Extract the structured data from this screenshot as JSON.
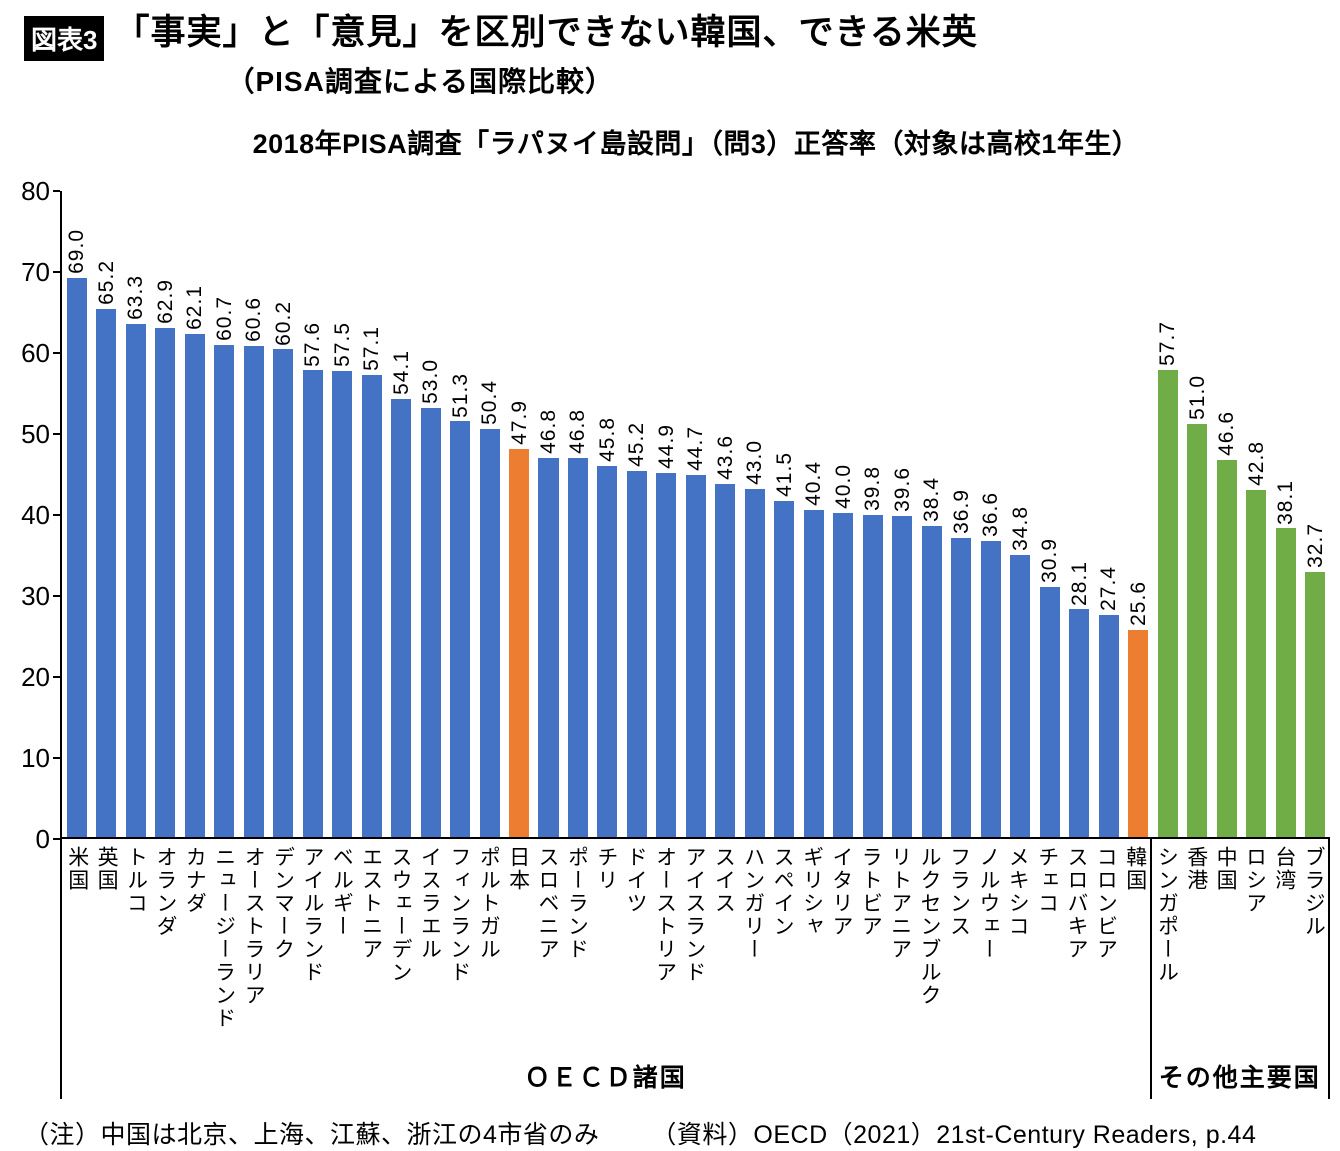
{
  "header": {
    "badge": "図表3",
    "title": "「事実」と「意見」を区別できない韓国、できる米英",
    "subtitle": "（PISA調査による国際比較）"
  },
  "chart_data": {
    "type": "bar",
    "title": "2018年PISA調査「ラパヌイ島設問」（問3）正答率（対象は高校1年生）",
    "xlabel": "",
    "ylabel": "",
    "ylim": [
      0,
      80
    ],
    "yticks": [
      0,
      10,
      20,
      30,
      40,
      50,
      60,
      70,
      80
    ],
    "grid": false,
    "legend": "none",
    "colors": {
      "oecd": "#4472C4",
      "highlight": "#ED7D31",
      "other": "#70AD47"
    },
    "groups": [
      {
        "label": "ＯＥＣＤ諸国",
        "color_key": "oecd",
        "bars": [
          {
            "name": "米国",
            "value": 69.0,
            "label": "69.0"
          },
          {
            "name": "英国",
            "value": 65.2,
            "label": "65.2"
          },
          {
            "name": "トルコ",
            "value": 63.3,
            "label": "63.3"
          },
          {
            "name": "オランダ",
            "value": 62.9,
            "label": "62.9"
          },
          {
            "name": "カナダ",
            "value": 62.1,
            "label": "62.1"
          },
          {
            "name": "ニュージーランド",
            "value": 60.7,
            "label": "60.7"
          },
          {
            "name": "オーストラリア",
            "value": 60.6,
            "label": "60.6"
          },
          {
            "name": "デンマーク",
            "value": 60.2,
            "label": "60.2"
          },
          {
            "name": "アイルランド",
            "value": 57.6,
            "label": "57.6"
          },
          {
            "name": "ベルギー",
            "value": 57.5,
            "label": "57.5"
          },
          {
            "name": "エストニア",
            "value": 57.1,
            "label": "57.1"
          },
          {
            "name": "スウェーデン",
            "value": 54.1,
            "label": "54.1"
          },
          {
            "name": "イスラエル",
            "value": 53.0,
            "label": "53.0"
          },
          {
            "name": "フィンランド",
            "value": 51.3,
            "label": "51.3"
          },
          {
            "name": "ポルトガル",
            "value": 50.4,
            "label": "50.4"
          },
          {
            "name": "日本",
            "value": 47.9,
            "label": "47.9",
            "color_key": "highlight"
          },
          {
            "name": "スロベニア",
            "value": 46.8,
            "label": "46.8"
          },
          {
            "name": "ポーランド",
            "value": 46.8,
            "label": "46.8"
          },
          {
            "name": "チリ",
            "value": 45.8,
            "label": "45.8"
          },
          {
            "name": "ドイツ",
            "value": 45.2,
            "label": "45.2"
          },
          {
            "name": "オーストリア",
            "value": 44.9,
            "label": "44.9"
          },
          {
            "name": "アイスランド",
            "value": 44.7,
            "label": "44.7"
          },
          {
            "name": "スイス",
            "value": 43.6,
            "label": "43.6"
          },
          {
            "name": "ハンガリー",
            "value": 43.0,
            "label": "43.0"
          },
          {
            "name": "スペイン",
            "value": 41.5,
            "label": "41.5"
          },
          {
            "name": "ギリシャ",
            "value": 40.4,
            "label": "40.4"
          },
          {
            "name": "イタリア",
            "value": 40.0,
            "label": "40.0"
          },
          {
            "name": "ラトビア",
            "value": 39.8,
            "label": "39.8"
          },
          {
            "name": "リトアニア",
            "value": 39.6,
            "label": "39.6"
          },
          {
            "name": "ルクセンブルク",
            "value": 38.4,
            "label": "38.4"
          },
          {
            "name": "フランス",
            "value": 36.9,
            "label": "36.9"
          },
          {
            "name": "ノルウェー",
            "value": 36.6,
            "label": "36.6"
          },
          {
            "name": "メキシコ",
            "value": 34.8,
            "label": "34.8"
          },
          {
            "name": "チェコ",
            "value": 30.9,
            "label": "30.9"
          },
          {
            "name": "スロバキア",
            "value": 28.1,
            "label": "28.1"
          },
          {
            "name": "コロンビア",
            "value": 27.4,
            "label": "27.4"
          },
          {
            "name": "韓国",
            "value": 25.6,
            "label": "25.6",
            "color_key": "highlight"
          }
        ]
      },
      {
        "label": "その他主要国",
        "color_key": "other",
        "bars": [
          {
            "name": "シンガポール",
            "value": 57.7,
            "label": "57.7"
          },
          {
            "name": "香港",
            "value": 51.0,
            "label": "51.0"
          },
          {
            "name": "中国",
            "value": 46.6,
            "label": "46.6"
          },
          {
            "name": "ロシア",
            "value": 42.8,
            "label": "42.8"
          },
          {
            "name": "台湾",
            "value": 38.1,
            "label": "38.1"
          },
          {
            "name": "ブラジル",
            "value": 32.7,
            "label": "32.7"
          }
        ]
      }
    ]
  },
  "footer": {
    "note": "（注）中国は北京、上海、江蘇、浙江の4市省のみ",
    "source": "（資料）OECD（2021）21st-Century Readers, p.44"
  }
}
